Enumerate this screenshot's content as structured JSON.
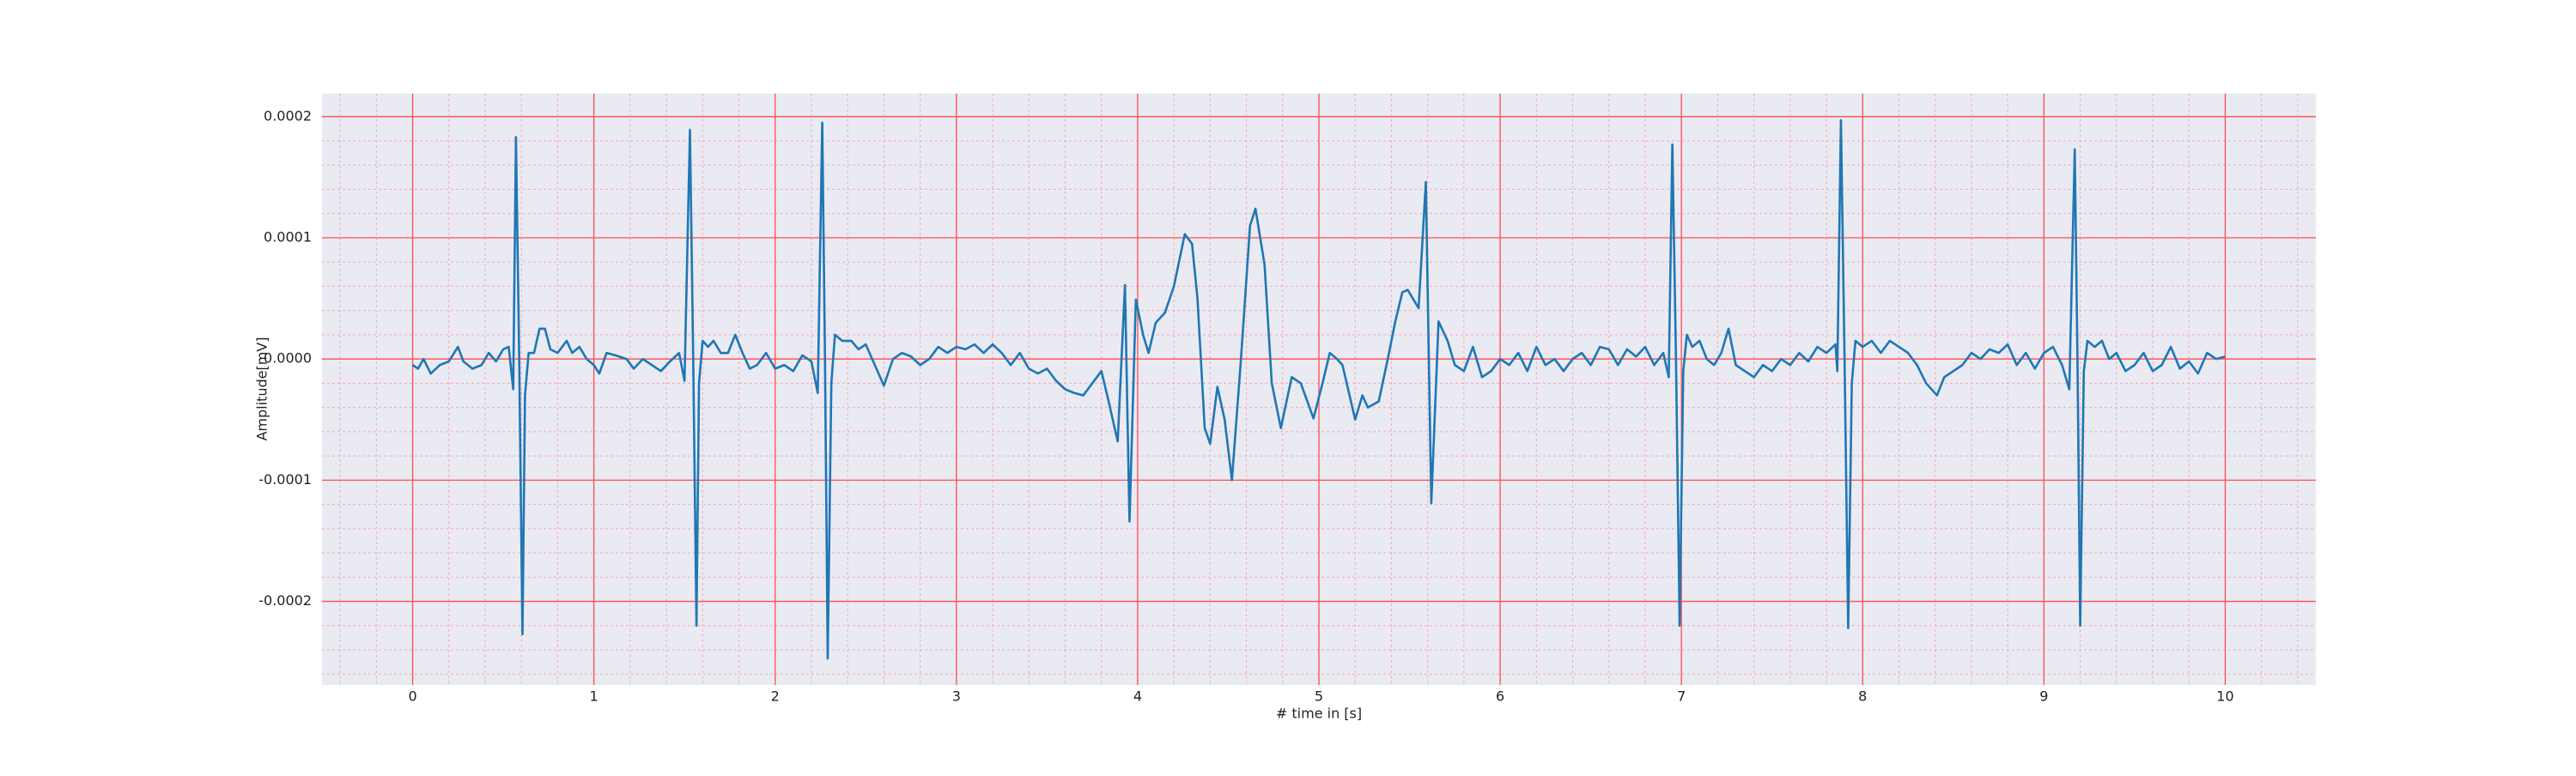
{
  "chart_data": {
    "type": "line",
    "xlabel": "# time in [s]",
    "ylabel": "Amplitude[mV]",
    "color": "#1f77b4",
    "grid": true,
    "grid_color": "#ff4d4d",
    "minor_grid_color": "#f4a8b8",
    "background": "#eaeaf2",
    "xlim": [
      -0.5,
      10.5
    ],
    "ylim": [
      -0.000269,
      0.000219
    ],
    "xticks": [
      0,
      1,
      2,
      3,
      4,
      5,
      6,
      7,
      8,
      9,
      10
    ],
    "yticks": [
      {
        "value": 0.0002,
        "label": "0.0002"
      },
      {
        "value": 0.0001,
        "label": "0.0001"
      },
      {
        "value": 0,
        "label": "0.0000"
      },
      {
        "value": -0.0001,
        "label": "-0.0001"
      },
      {
        "value": -0.0002,
        "label": "-0.0002"
      }
    ],
    "xminorticks": [
      -0.4,
      -0.2,
      0.2,
      0.4,
      0.6,
      0.8,
      1.2,
      1.4,
      1.6,
      1.8,
      2.2,
      2.4,
      2.6,
      2.8,
      3.2,
      3.4,
      3.6,
      3.8,
      4.2,
      4.4,
      4.6,
      4.8,
      5.2,
      5.4,
      5.6,
      5.8,
      6.2,
      6.4,
      6.6,
      6.8,
      7.2,
      7.4,
      7.6,
      7.8,
      8.2,
      8.4,
      8.6,
      8.8,
      9.2,
      9.4,
      9.6,
      9.8,
      10.2,
      10.4
    ],
    "yminorticks": [
      -0.00026,
      -0.00024,
      -0.00022,
      -0.00018,
      -0.00016,
      -0.00014,
      -0.00012,
      -8e-05,
      -6e-05,
      -4e-05,
      -2e-05,
      2e-05,
      4e-05,
      6e-05,
      8e-05,
      0.00012,
      0.00014,
      0.00016,
      0.00018
    ],
    "x": [
      0,
      0.03,
      0.06,
      0.1,
      0.15,
      0.2,
      0.25,
      0.28,
      0.33,
      0.38,
      0.42,
      0.46,
      0.5,
      0.53,
      0.555,
      0.57,
      0.588,
      0.606,
      0.62,
      0.64,
      0.67,
      0.7,
      0.73,
      0.76,
      0.8,
      0.85,
      0.88,
      0.92,
      0.96,
      1.0,
      1.03,
      1.07,
      1.12,
      1.18,
      1.22,
      1.27,
      1.32,
      1.37,
      1.42,
      1.47,
      1.5,
      1.53,
      1.548,
      1.566,
      1.58,
      1.6,
      1.63,
      1.66,
      1.7,
      1.74,
      1.78,
      1.82,
      1.86,
      1.9,
      1.95,
      2.0,
      2.05,
      2.1,
      2.15,
      2.2,
      2.235,
      2.26,
      2.275,
      2.29,
      2.31,
      2.33,
      2.37,
      2.42,
      2.46,
      2.5,
      2.55,
      2.6,
      2.65,
      2.7,
      2.75,
      2.8,
      2.85,
      2.9,
      2.95,
      3.0,
      3.05,
      3.1,
      3.15,
      3.2,
      3.25,
      3.3,
      3.35,
      3.4,
      3.45,
      3.5,
      3.55,
      3.6,
      3.65,
      3.7,
      3.75,
      3.8,
      3.84,
      3.87,
      3.89,
      3.93,
      3.955,
      3.99,
      4.03,
      4.06,
      4.1,
      4.15,
      4.2,
      4.26,
      4.3,
      4.33,
      4.37,
      4.4,
      4.44,
      4.48,
      4.52,
      4.57,
      4.62,
      4.65,
      4.7,
      4.74,
      4.79,
      4.85,
      4.9,
      4.97,
      5.02,
      5.06,
      5.1,
      5.13,
      5.2,
      5.24,
      5.27,
      5.33,
      5.38,
      5.42,
      5.46,
      5.49,
      5.55,
      5.59,
      5.62,
      5.66,
      5.71,
      5.75,
      5.8,
      5.85,
      5.9,
      5.95,
      6.0,
      6.05,
      6.1,
      6.15,
      6.2,
      6.25,
      6.3,
      6.35,
      6.4,
      6.45,
      6.5,
      6.55,
      6.6,
      6.65,
      6.7,
      6.75,
      6.8,
      6.85,
      6.9,
      6.93,
      6.95,
      6.97,
      6.99,
      7.01,
      7.03,
      7.06,
      7.1,
      7.14,
      7.18,
      7.22,
      7.26,
      7.3,
      7.35,
      7.4,
      7.45,
      7.5,
      7.55,
      7.6,
      7.65,
      7.7,
      7.75,
      7.8,
      7.85,
      7.86,
      7.88,
      7.9,
      7.92,
      7.94,
      7.96,
      8.0,
      8.05,
      8.1,
      8.15,
      8.2,
      8.25,
      8.3,
      8.35,
      8.41,
      8.45,
      8.5,
      8.55,
      8.6,
      8.65,
      8.7,
      8.75,
      8.8,
      8.85,
      8.9,
      8.95,
      9.0,
      9.05,
      9.1,
      9.14,
      9.17,
      9.185,
      9.2,
      9.22,
      9.24,
      9.28,
      9.32,
      9.36,
      9.4,
      9.45,
      9.5,
      9.55,
      9.6,
      9.65,
      9.7,
      9.75,
      9.8,
      9.85,
      9.9,
      9.95,
      10.0
    ],
    "values": [
      -5e-06,
      -8e-06,
      0,
      -1.2e-05,
      -5e-06,
      -2e-06,
      1e-05,
      -2e-06,
      -8e-06,
      -5e-06,
      5e-06,
      -2e-06,
      8e-06,
      1e-05,
      -2.5e-05,
      0.000183,
      0,
      -0.000227,
      -3e-05,
      5e-06,
      5e-06,
      2.5e-05,
      2.5e-05,
      8e-06,
      5e-06,
      1.5e-05,
      5e-06,
      1e-05,
      0,
      -5e-06,
      -1.2e-05,
      5e-06,
      3e-06,
      0,
      -8e-06,
      0,
      -5e-06,
      -1e-05,
      -2e-06,
      5e-06,
      -1.8e-05,
      0.000189,
      0,
      -0.00022,
      -2e-05,
      1.5e-05,
      1e-05,
      1.5e-05,
      5e-06,
      5e-06,
      2e-05,
      5e-06,
      -8e-06,
      -5e-06,
      5e-06,
      -8e-06,
      -5e-06,
      -1e-05,
      3e-06,
      -2e-06,
      -2.8e-05,
      0.000195,
      0,
      -0.000247,
      -2e-05,
      2e-05,
      1.5e-05,
      1.5e-05,
      8e-06,
      1.2e-05,
      -5e-06,
      -2.2e-05,
      0,
      5e-06,
      2e-06,
      -5e-06,
      0,
      1e-05,
      5e-06,
      1e-05,
      8e-06,
      1.2e-05,
      5e-06,
      1.2e-05,
      5e-06,
      -5e-06,
      5e-06,
      -8e-06,
      -1.2e-05,
      -8e-06,
      -1.8e-05,
      -2.5e-05,
      -2.8e-05,
      -3e-05,
      -2e-05,
      -1e-05,
      -3.5e-05,
      -5.5e-05,
      -6.8e-05,
      6.1e-05,
      -0.000134,
      4.9e-05,
      2e-05,
      5e-06,
      3e-05,
      3.8e-05,
      6e-05,
      0.000103,
      9.5e-05,
      5e-05,
      -5.7e-05,
      -7e-05,
      -2.3e-05,
      -5e-05,
      -0.0001,
      0,
      0.00011,
      0.000124,
      7.8e-05,
      -2e-05,
      -5.7e-05,
      -1.5e-05,
      -2e-05,
      -4.9e-05,
      -2e-05,
      5e-06,
      0,
      -5e-06,
      -5e-05,
      -3e-05,
      -4e-05,
      -3.5e-05,
      0,
      3e-05,
      5.5e-05,
      5.7e-05,
      4.2e-05,
      0.000146,
      -0.000119,
      3.1e-05,
      1.5e-05,
      -5e-06,
      -1e-05,
      1e-05,
      -1.5e-05,
      -1e-05,
      0,
      -5e-06,
      5e-06,
      -1e-05,
      1e-05,
      -5e-06,
      0,
      -1e-05,
      0,
      5e-06,
      -5e-06,
      1e-05,
      8e-06,
      -5e-06,
      8e-06,
      2e-06,
      1e-05,
      -5e-06,
      5e-06,
      -1.5e-05,
      0.000177,
      0,
      -0.00022,
      -1e-05,
      2e-05,
      1e-05,
      1.5e-05,
      0,
      -5e-06,
      5e-06,
      2.5e-05,
      -5e-06,
      -1e-05,
      -1.5e-05,
      -5e-06,
      -1e-05,
      0,
      -5e-06,
      5e-06,
      -2e-06,
      1e-05,
      5e-06,
      1.2e-05,
      -1e-05,
      0.000197,
      0,
      -0.000222,
      -2e-05,
      1.5e-05,
      1e-05,
      1.5e-05,
      5e-06,
      1.5e-05,
      1e-05,
      5e-06,
      -5e-06,
      -2e-05,
      -3e-05,
      -1.5e-05,
      -1e-05,
      -5e-06,
      5e-06,
      0,
      8e-06,
      5e-06,
      1.2e-05,
      -5e-06,
      5e-06,
      -8e-06,
      5e-06,
      1e-05,
      -5e-06,
      -2.5e-05,
      0.000173,
      0,
      -0.00022,
      -1e-05,
      1.5e-05,
      1e-05,
      1.5e-05,
      0,
      5e-06,
      -1e-05,
      -5e-06,
      5e-06,
      -1e-05,
      -5e-06,
      1e-05,
      -8e-06,
      -2e-06,
      -1.2e-05,
      5e-06,
      0,
      2e-06
    ]
  }
}
